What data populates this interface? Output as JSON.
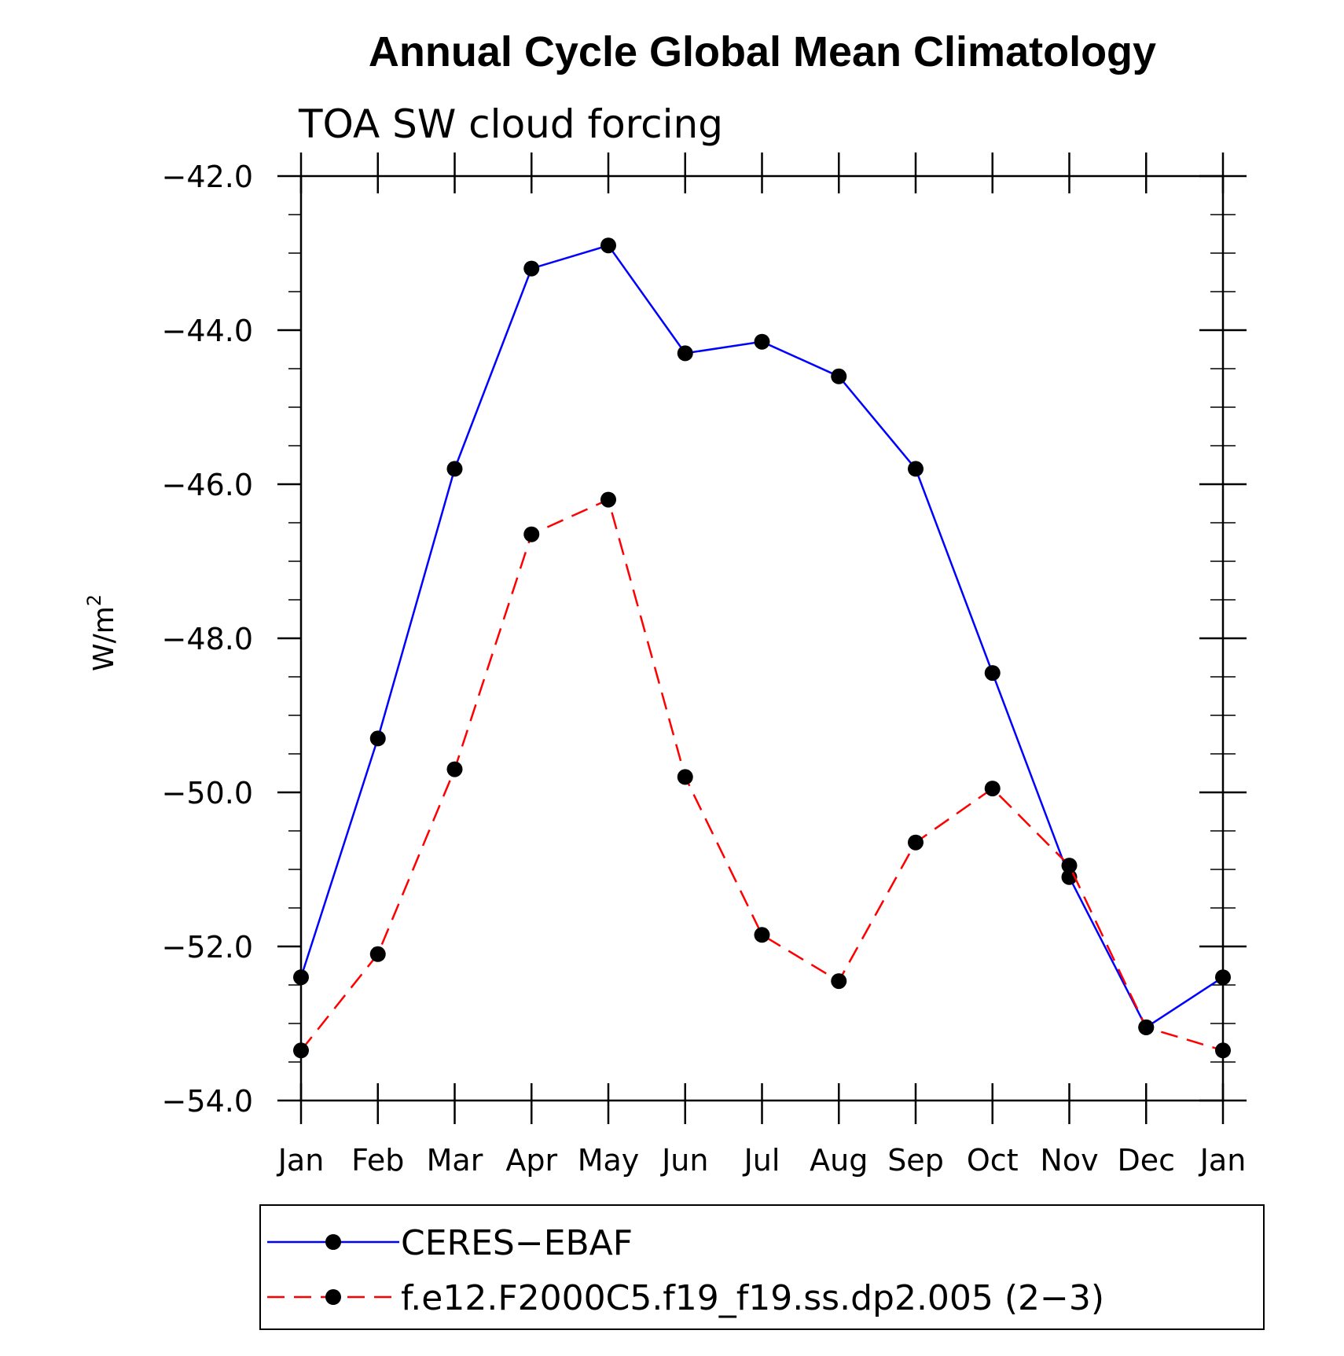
{
  "chart_data": {
    "type": "line",
    "title": "Annual Cycle Global Mean Climatology",
    "subtitle": "TOA SW cloud forcing",
    "ylabel": "W/m",
    "ylabel_superscript": "2",
    "categories": [
      "Jan",
      "Feb",
      "Mar",
      "Apr",
      "May",
      "Jun",
      "Jul",
      "Aug",
      "Sep",
      "Oct",
      "Nov",
      "Dec",
      "Jan"
    ],
    "ylim": [
      -54.0,
      -42.0
    ],
    "yticks": [
      -42.0,
      -44.0,
      -46.0,
      -48.0,
      -50.0,
      -52.0,
      -54.0
    ],
    "ytick_labels": [
      "−42.0",
      "−44.0",
      "−46.0",
      "−48.0",
      "−50.0",
      "−52.0",
      "−54.0"
    ],
    "grid": false,
    "legend_position": "bottom",
    "series": [
      {
        "name": "CERES−EBAF",
        "color": "#0000ff",
        "dash": "solid",
        "marker": "filled-circle",
        "values": [
          -52.4,
          -49.3,
          -45.8,
          -43.2,
          -42.9,
          -44.3,
          -44.15,
          -44.6,
          -45.8,
          -48.45,
          -51.1,
          -53.05,
          -52.4
        ]
      },
      {
        "name": "f.e12.F2000C5.f19_f19.ss.dp2.005 (2−3)",
        "color": "#ff0000",
        "dash": "dashed",
        "marker": "filled-circle",
        "values": [
          -53.35,
          -52.1,
          -49.7,
          -46.65,
          -46.2,
          -49.8,
          -51.85,
          -52.45,
          -50.65,
          -49.95,
          -50.95,
          -53.05,
          -53.35
        ]
      }
    ]
  }
}
